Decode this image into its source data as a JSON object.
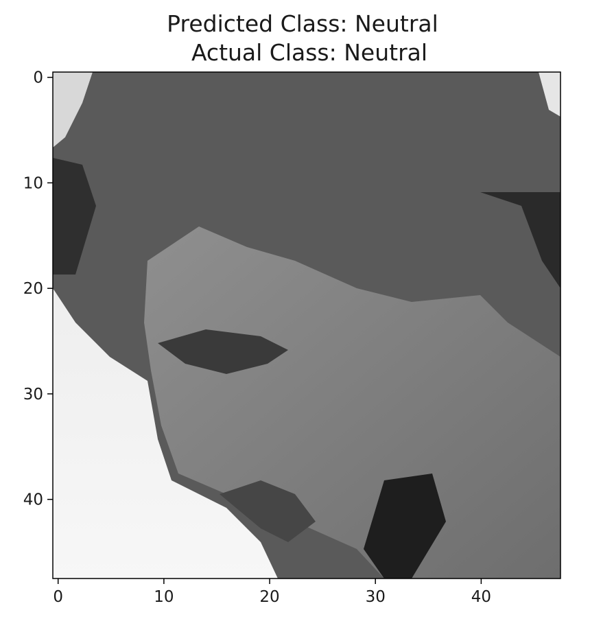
{
  "chart_data": {
    "type": "heatmap",
    "title": {
      "line1": "Predicted Class: Neutral",
      "line2": "Actual Class: Neutral"
    },
    "colormap": "gray",
    "image_size": [
      48,
      48
    ],
    "xlim": [
      -0.5,
      47.5
    ],
    "ylim": [
      47.5,
      -0.5
    ],
    "x_ticks": [
      {
        "value": 0,
        "label": "0"
      },
      {
        "value": 10,
        "label": "10"
      },
      {
        "value": 20,
        "label": "20"
      },
      {
        "value": 30,
        "label": "30"
      },
      {
        "value": 40,
        "label": "40"
      }
    ],
    "y_ticks": [
      {
        "value": 0,
        "label": "0"
      },
      {
        "value": 10,
        "label": "10"
      },
      {
        "value": 20,
        "label": "20"
      },
      {
        "value": 30,
        "label": "30"
      },
      {
        "value": 40,
        "label": "40"
      }
    ],
    "axis_color": "#000000",
    "text_color": "#1a1a1a"
  }
}
